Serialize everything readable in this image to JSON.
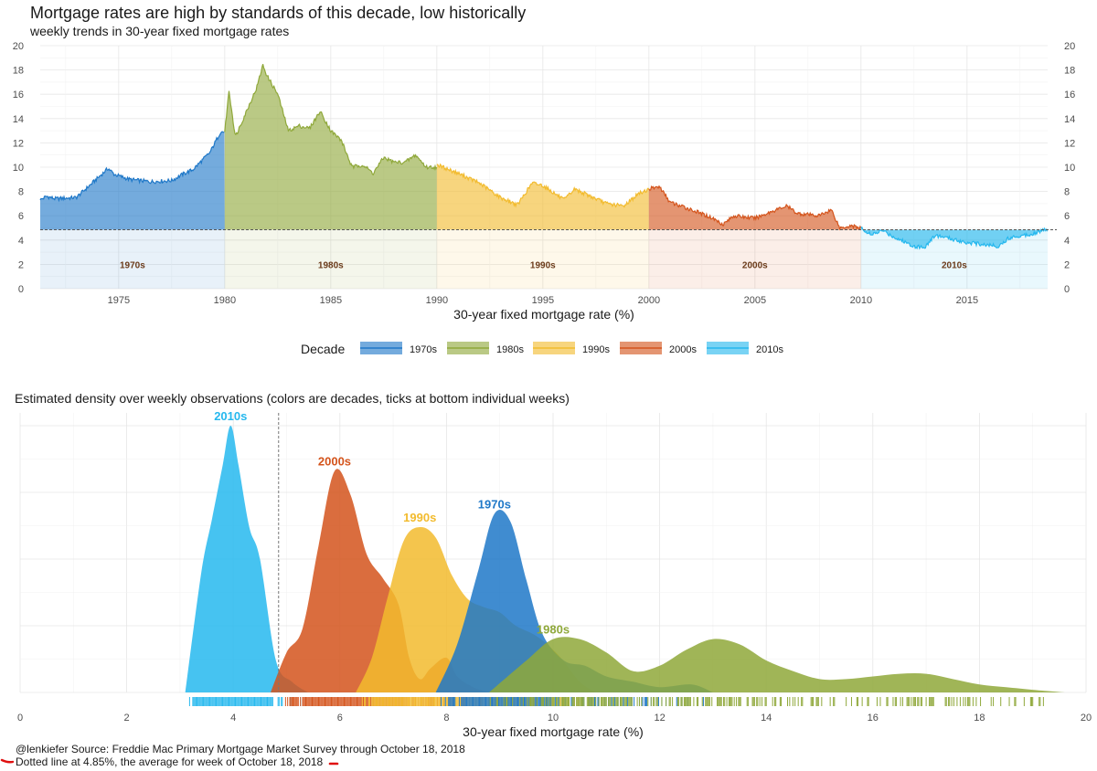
{
  "header": {
    "title": "Mortgage rates are high by standards of this decade, low historically",
    "subtitle": "weekly trends in 30-year fixed mortgage rates"
  },
  "legend": {
    "title": "Decade",
    "items": [
      {
        "label": "1970s",
        "color": "#1f78c8"
      },
      {
        "label": "1980s",
        "color": "#8fa83a"
      },
      {
        "label": "1990s",
        "color": "#f2bb2e"
      },
      {
        "label": "2000s",
        "color": "#d4541c"
      },
      {
        "label": "2010s",
        "color": "#26b8ee"
      }
    ]
  },
  "density_title": "Estimated density over weekly observations (colors are decades, ticks at bottom individual weeks)",
  "captions": {
    "line1": "@lenkiefer Source: Freddie Mac Primary Mortgage Market Survey through October 18, 2018",
    "line2": "Dotted line at 4.85%, the average for week of October 18, 2018"
  },
  "chart_data": [
    {
      "type": "area",
      "xlabel": "30-year fixed mortgage rate (%)",
      "x_ticks": [
        "1975",
        "1980",
        "1985",
        "1990",
        "1995",
        "2000",
        "2005",
        "2010",
        "2015"
      ],
      "y_ticks": [
        "0",
        "2",
        "4",
        "6",
        "8",
        "10",
        "12",
        "14",
        "16",
        "18",
        "20"
      ],
      "xlim": [
        1971.3,
        2018.8
      ],
      "ylim": [
        0,
        20
      ],
      "reference_line": 4.85,
      "decade_labels": [
        "1970s",
        "1980s",
        "1990s",
        "2000s",
        "2010s"
      ],
      "series": [
        {
          "decade": "1970s",
          "color": "#1f78c8",
          "x": [
            1971.3,
            1971.6,
            1972,
            1973,
            1973.7,
            1974.5,
            1974.8,
            1975.5,
            1976.5,
            1977.5,
            1978,
            1978.5,
            1979.3,
            1979.8,
            1980.0
          ],
          "y": [
            7.3,
            7.6,
            7.4,
            7.5,
            8.6,
            9.9,
            9.4,
            9.0,
            8.8,
            8.9,
            9.4,
            9.8,
            11.2,
            12.9,
            12.9
          ]
        },
        {
          "decade": "1980s",
          "color": "#8fa83a",
          "x": [
            1980.0,
            1980.2,
            1980.5,
            1981.0,
            1981.5,
            1981.8,
            1982.0,
            1982.5,
            1983.0,
            1983.5,
            1984.0,
            1984.5,
            1985.0,
            1985.5,
            1986.0,
            1986.5,
            1987.0,
            1987.5,
            1988.0,
            1988.5,
            1989.0,
            1989.5,
            1990.0
          ],
          "y": [
            12.9,
            16.3,
            12.5,
            14.5,
            16.5,
            18.4,
            17.5,
            16.0,
            13.0,
            13.4,
            13.2,
            14.6,
            13.0,
            12.2,
            10.0,
            10.2,
            9.5,
            10.8,
            10.4,
            10.4,
            11.0,
            10.0,
            10.0
          ]
        },
        {
          "decade": "1990s",
          "color": "#f2bb2e",
          "x": [
            1990.0,
            1991.0,
            1992.0,
            1993.0,
            1993.8,
            1994.5,
            1995.0,
            1996.0,
            1996.5,
            1997.0,
            1998.0,
            1998.8,
            1999.5,
            2000.0
          ],
          "y": [
            10.2,
            9.5,
            8.7,
            7.5,
            6.9,
            8.7,
            8.5,
            7.3,
            8.2,
            7.8,
            7.0,
            6.8,
            7.8,
            8.2
          ]
        },
        {
          "decade": "2000s",
          "color": "#d4541c",
          "x": [
            2000.0,
            2000.5,
            2001.0,
            2002.0,
            2003.0,
            2003.5,
            2004.0,
            2005.0,
            2006.0,
            2006.5,
            2007.0,
            2008.0,
            2008.6,
            2009.0,
            2009.5,
            2010.0
          ],
          "y": [
            8.2,
            8.4,
            7.1,
            6.5,
            5.8,
            5.3,
            6.0,
            5.8,
            6.5,
            6.8,
            6.2,
            6.0,
            6.5,
            5.0,
            5.2,
            5.0
          ]
        },
        {
          "decade": "2010s",
          "color": "#26b8ee",
          "x": [
            2010.0,
            2010.5,
            2011.0,
            2011.5,
            2012.0,
            2012.5,
            2013.0,
            2013.5,
            2014.0,
            2015.0,
            2016.0,
            2016.5,
            2017.0,
            2018.0,
            2018.8
          ],
          "y": [
            5.0,
            4.4,
            4.8,
            4.3,
            3.9,
            3.5,
            3.4,
            4.4,
            4.2,
            3.8,
            3.6,
            3.5,
            4.2,
            4.5,
            4.9
          ]
        }
      ]
    },
    {
      "type": "area",
      "xlabel": "30-year fixed mortgage rate (%)",
      "x_ticks": [
        "0",
        "2",
        "4",
        "6",
        "8",
        "10",
        "12",
        "14",
        "16",
        "18",
        "20"
      ],
      "xlim": [
        0,
        20
      ],
      "ylim": [
        0,
        1
      ],
      "reference_line": 4.85,
      "series": [
        {
          "name": "2010s",
          "color": "#26b8ee",
          "x": [
            3.1,
            3.4,
            3.6,
            3.8,
            3.95,
            4.1,
            4.3,
            4.5,
            4.8,
            5.1,
            5.4
          ],
          "y": [
            0.0,
            0.45,
            0.65,
            0.85,
            1.0,
            0.85,
            0.62,
            0.5,
            0.12,
            0.04,
            0.0
          ]
        },
        {
          "name": "2000s",
          "color": "#d4541c",
          "x": [
            4.7,
            5.0,
            5.3,
            5.6,
            5.9,
            6.2,
            6.5,
            6.8,
            7.1,
            7.3,
            7.5,
            7.7,
            8.0,
            8.2,
            8.5,
            8.8
          ],
          "y": [
            0.0,
            0.15,
            0.24,
            0.55,
            0.83,
            0.74,
            0.52,
            0.43,
            0.33,
            0.13,
            0.05,
            0.09,
            0.13,
            0.06,
            0.02,
            0.0
          ]
        },
        {
          "name": "1990s",
          "color": "#f2bb2e",
          "x": [
            6.3,
            6.6,
            6.9,
            7.2,
            7.5,
            7.8,
            8.1,
            8.4,
            8.7,
            9.0,
            9.3,
            9.7,
            10.1,
            10.5,
            10.8
          ],
          "y": [
            0.0,
            0.13,
            0.36,
            0.57,
            0.62,
            0.58,
            0.44,
            0.35,
            0.32,
            0.3,
            0.25,
            0.21,
            0.14,
            0.04,
            0.0
          ]
        },
        {
          "name": "1970s",
          "color": "#1f78c8",
          "x": [
            7.8,
            8.2,
            8.6,
            8.9,
            9.2,
            9.5,
            9.8,
            10.2,
            10.6,
            11.0,
            11.5,
            12.0,
            12.6,
            13.0
          ],
          "y": [
            0.0,
            0.18,
            0.46,
            0.67,
            0.64,
            0.42,
            0.22,
            0.12,
            0.1,
            0.06,
            0.04,
            0.02,
            0.03,
            0.0
          ]
        },
        {
          "name": "1980s",
          "color": "#8fa83a",
          "x": [
            8.8,
            9.5,
            10.0,
            10.5,
            11.0,
            11.5,
            12.0,
            12.5,
            13.0,
            13.5,
            14.0,
            14.5,
            15.0,
            15.5,
            16.0,
            16.5,
            17.0,
            17.5,
            18.0,
            18.5,
            19.0,
            19.6
          ],
          "y": [
            0.0,
            0.12,
            0.2,
            0.2,
            0.15,
            0.08,
            0.1,
            0.16,
            0.2,
            0.18,
            0.12,
            0.08,
            0.05,
            0.05,
            0.06,
            0.07,
            0.07,
            0.05,
            0.03,
            0.02,
            0.01,
            0.0
          ]
        }
      ],
      "rug_note": "ticks at bottom individual weeks"
    }
  ]
}
